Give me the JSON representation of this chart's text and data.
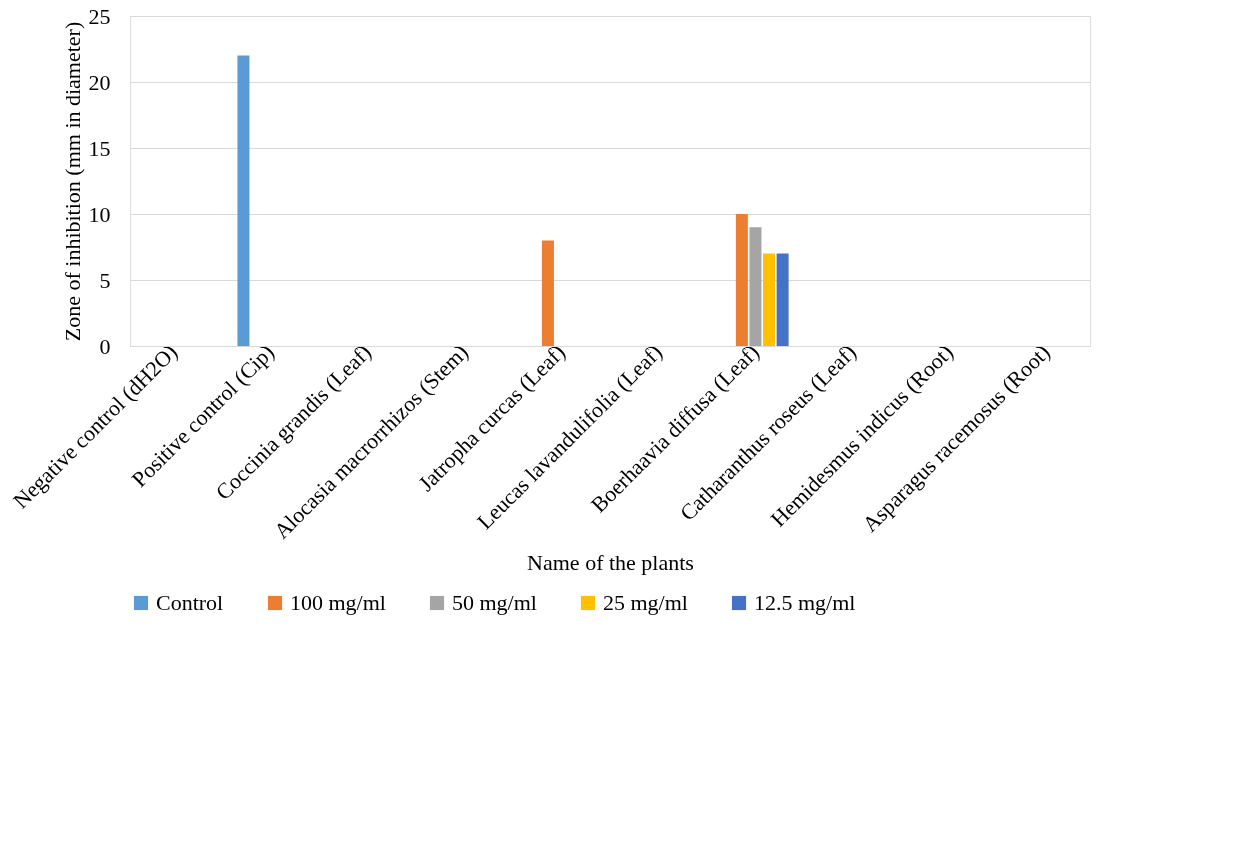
{
  "chart_data": {
    "type": "bar",
    "xlabel": "Name of the plants",
    "ylabel": "Zone of inhibition (mm in diameter)",
    "categories": [
      "Negative  control (dH2O)",
      "Positive control (Cip)",
      "Coccinia grandis (Leaf)",
      "Alocasia macrorrhizos (Stem)",
      "Jatropha curcas (Leaf)",
      "Leucas lavandulifolia (Leaf)",
      "Boerhaavia diffusa (Leaf)",
      "Catharanthus roseus (Leaf)",
      "Hemidesmus indicus (Root)",
      "Asparagus racemosus (Root)"
    ],
    "series": [
      {
        "name": "Control",
        "color": "#5b9bd5",
        "values": [
          0,
          22,
          null,
          null,
          null,
          null,
          null,
          null,
          null,
          null
        ]
      },
      {
        "name": "100 mg/ml",
        "color": "#ed7d31",
        "values": [
          null,
          null,
          0,
          0,
          8,
          0,
          10,
          0,
          0,
          0
        ]
      },
      {
        "name": "50 mg/ml",
        "color": "#a5a5a5",
        "values": [
          null,
          null,
          0,
          0,
          0,
          0,
          9,
          0,
          0,
          0
        ]
      },
      {
        "name": "25 mg/ml",
        "color": "#ffc000",
        "values": [
          null,
          null,
          0,
          0,
          0,
          0,
          7,
          0,
          0,
          0
        ]
      },
      {
        "name": "12.5 mg/ml",
        "color": "#4472c4",
        "values": [
          null,
          null,
          0,
          0,
          0,
          0,
          7,
          0,
          0,
          0
        ]
      }
    ],
    "ylim": [
      0,
      25
    ],
    "yticks": [
      0,
      5,
      10,
      15,
      20,
      25
    ],
    "grid": "y",
    "legend": "bottom"
  }
}
